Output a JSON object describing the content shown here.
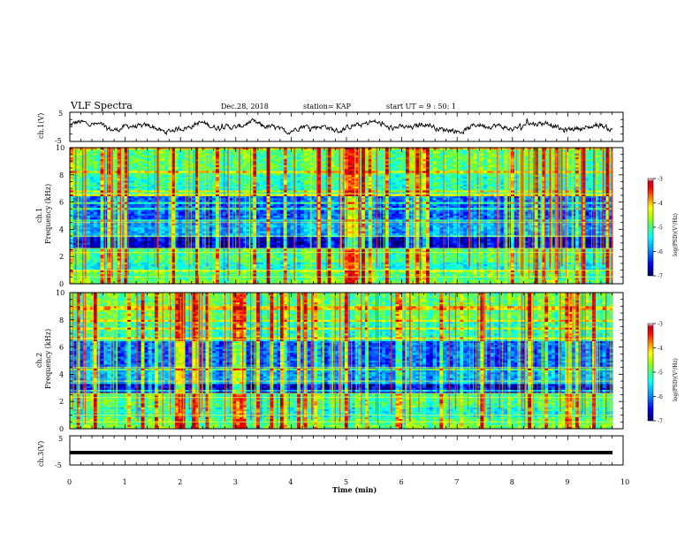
{
  "header": {
    "title": "VLF Spectra",
    "date": "Dec.28, 2018",
    "station": "station= KAP",
    "start": "start UT =  9 : 50: 1"
  },
  "chart_data": [
    {
      "type": "line",
      "panel": "top waveform",
      "ylabel": "ch.1(V)",
      "ylim": [
        -5,
        5
      ],
      "yticks": [
        "5",
        "-5"
      ],
      "xlim": [
        0,
        10
      ],
      "description_values": "noisy waveform oscillating roughly between -1.5 and 1.5 V"
    },
    {
      "type": "heatmap",
      "panel": "ch1 spectrogram",
      "ylabel": "ch.1\nFrequency (kHz)",
      "ylabel_line1": "ch.1",
      "ylabel_line2": "Frequency (kHz)",
      "ylim": [
        0,
        10
      ],
      "yticks": [
        "0",
        "2",
        "4",
        "6",
        "8",
        "10"
      ],
      "xlim": [
        0,
        10
      ],
      "colorbar": {
        "label": "log(PSD)(V²/Hz)",
        "range": [
          -7,
          -3
        ],
        "ticks": [
          "-3",
          "-4",
          "-5",
          "-6",
          "-7"
        ],
        "colors": [
          "#000080",
          "#0000ff",
          "#00a0ff",
          "#00ffff",
          "#40ff80",
          "#a0ff00",
          "#ffff00",
          "#ff8000",
          "#ff0000",
          "#a00000",
          "#ffffff"
        ]
      }
    },
    {
      "type": "heatmap",
      "panel": "ch2 spectrogram",
      "ylabel_line1": "ch.2",
      "ylabel_line2": "Frequency (kHz)",
      "ylim": [
        0,
        10
      ],
      "yticks": [
        "0",
        "2",
        "4",
        "6",
        "8",
        "10"
      ],
      "xlim": [
        0,
        10
      ],
      "colorbar": {
        "label": "log(PSD)(V²/Hz)",
        "range": [
          -7,
          -3
        ],
        "ticks": [
          "-3",
          "-4",
          "-5",
          "-6",
          "-7"
        ]
      }
    },
    {
      "type": "line",
      "panel": "bottom waveform",
      "ylabel": "ch.3(V)",
      "ylim": [
        -5,
        5
      ],
      "yticks": [
        "5",
        "-5"
      ],
      "values_constant": -1.2,
      "xlim": [
        0,
        10
      ],
      "xlabel": "Time (min)",
      "xticks": [
        "0",
        "1",
        "2",
        "3",
        "4",
        "5",
        "6",
        "7",
        "8",
        "9",
        "10"
      ]
    }
  ]
}
